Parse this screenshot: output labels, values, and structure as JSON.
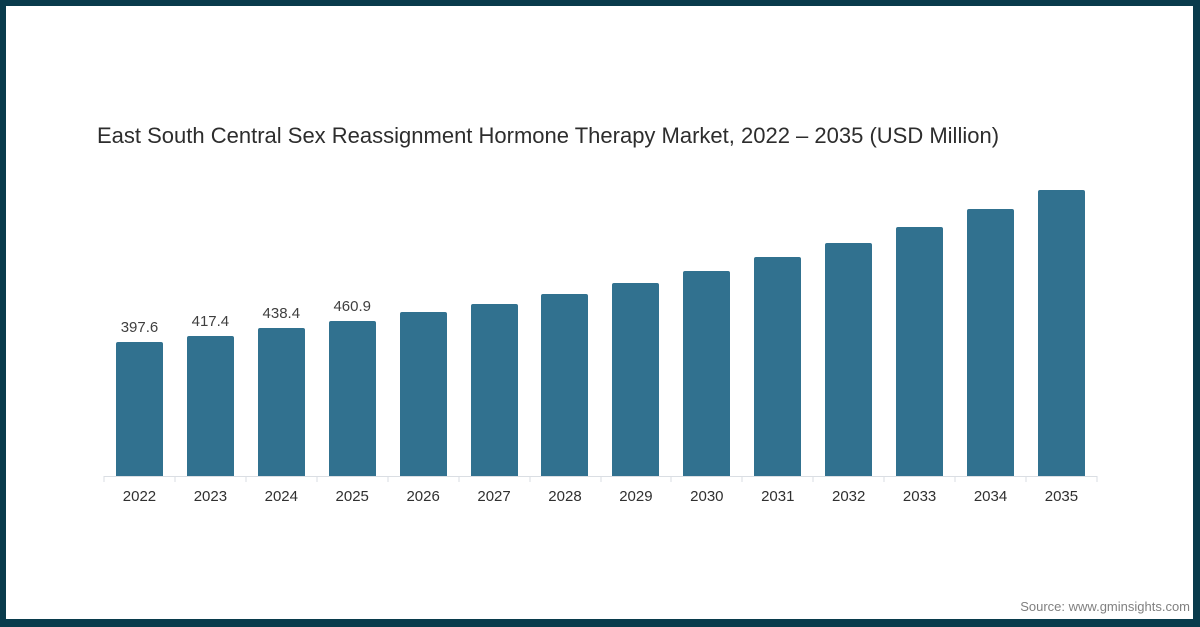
{
  "page": {
    "background": "#ffffff",
    "border_color": "#093b4c"
  },
  "chart_data": {
    "type": "bar",
    "title": "East South Central Sex Reassignment Hormone Therapy Market, 2022 – 2035 (USD Million)",
    "categories": [
      "2022",
      "2023",
      "2024",
      "2025",
      "2026",
      "2027",
      "2028",
      "2029",
      "2030",
      "2031",
      "2032",
      "2033",
      "2034",
      "2035"
    ],
    "values": [
      397.6,
      417.4,
      438.4,
      460.9,
      486,
      512,
      541,
      573,
      610,
      650,
      693,
      740,
      793,
      851
    ],
    "data_labels": [
      "397.6",
      "417.4",
      "438.4",
      "460.9",
      "",
      "",
      "",
      "",
      "",
      "",
      "",
      "",
      "",
      ""
    ],
    "xlabel": "",
    "ylabel": "",
    "ylim": [
      0,
      900
    ],
    "grid": false,
    "legend_position": "none",
    "bar_color": "#31718f",
    "axis_line_color": "#dadee3",
    "title_color": "#2d2d2d",
    "label_color": "#3f3f3f",
    "tick_label_color": "#303030"
  },
  "footer": {
    "source_label": "Source: www.gminsights.com",
    "source_color": "#808080"
  }
}
